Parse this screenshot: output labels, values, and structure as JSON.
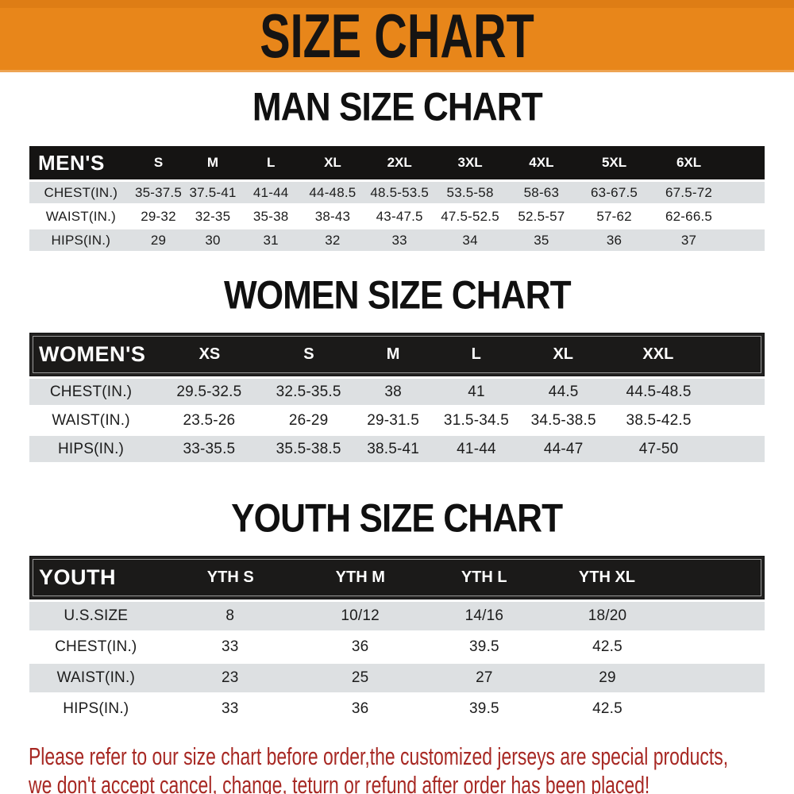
{
  "banner": {
    "title": "SIZE CHART",
    "bg_color": "#E8861A",
    "text_color": "#161413"
  },
  "chart_data": [
    {
      "type": "table",
      "title": "MAN SIZE CHART",
      "corner_label": "MEN'S",
      "columns": [
        "S",
        "M",
        "L",
        "XL",
        "2XL",
        "3XL",
        "4XL",
        "5XL",
        "6XL"
      ],
      "rows": [
        {
          "label": "CHEST(IN.)",
          "values": [
            "35-37.5",
            "37.5-41",
            "41-44",
            "44-48.5",
            "48.5-53.5",
            "53.5-58",
            "58-63",
            "63-67.5",
            "67.5-72"
          ]
        },
        {
          "label": "WAIST(IN.)",
          "values": [
            "29-32",
            "32-35",
            "35-38",
            "38-43",
            "43-47.5",
            "47.5-52.5",
            "52.5-57",
            "57-62",
            "62-66.5"
          ]
        },
        {
          "label": "HIPS(IN.)",
          "values": [
            "29",
            "30",
            "31",
            "32",
            "33",
            "34",
            "35",
            "36",
            "37"
          ]
        }
      ]
    },
    {
      "type": "table",
      "title": "WOMEN SIZE CHART",
      "corner_label": "WOMEN'S",
      "columns": [
        "XS",
        "S",
        "M",
        "L",
        "XL",
        "XXL"
      ],
      "rows": [
        {
          "label": "CHEST(IN.)",
          "values": [
            "29.5-32.5",
            "32.5-35.5",
            "38",
            "41",
            "44.5",
            "44.5-48.5"
          ]
        },
        {
          "label": "WAIST(IN.)",
          "values": [
            "23.5-26",
            "26-29",
            "29-31.5",
            "31.5-34.5",
            "34.5-38.5",
            "38.5-42.5"
          ]
        },
        {
          "label": "HIPS(IN.)",
          "values": [
            "33-35.5",
            "35.5-38.5",
            "38.5-41",
            "41-44",
            "44-47",
            "47-50"
          ]
        }
      ]
    },
    {
      "type": "table",
      "title": "YOUTH SIZE CHART",
      "corner_label": "YOUTH",
      "columns": [
        "YTH S",
        "YTH M",
        "YTH L",
        "YTH XL"
      ],
      "rows": [
        {
          "label": "U.S.SIZE",
          "values": [
            "8",
            "10/12",
            "14/16",
            "18/20"
          ]
        },
        {
          "label": "CHEST(IN.)",
          "values": [
            "33",
            "36",
            "39.5",
            "42.5"
          ]
        },
        {
          "label": "WAIST(IN.)",
          "values": [
            "23",
            "25",
            "27",
            "29"
          ]
        },
        {
          "label": "HIPS(IN.)",
          "values": [
            "33",
            "36",
            "39.5",
            "42.5"
          ]
        }
      ]
    }
  ],
  "footer": {
    "line1": "Please refer to our size chart before order,the customized jerseys are special products,",
    "line2": "we don't accept cancel, change, teturn or refund after order has been placed!",
    "text_color": "#A72823"
  }
}
